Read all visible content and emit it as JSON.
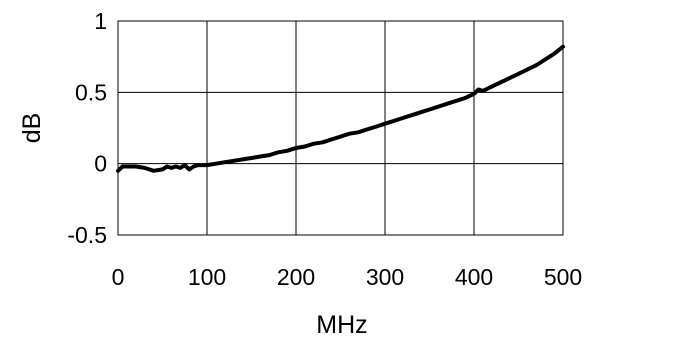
{
  "chart_data": {
    "type": "line",
    "title": "",
    "xlabel": "MHz",
    "ylabel": "dB",
    "xlim": [
      0,
      500
    ],
    "ylim": [
      -0.5,
      1
    ],
    "grid": true,
    "legend": "none",
    "x_ticks": [
      0,
      100,
      200,
      300,
      400,
      500
    ],
    "x_tick_labels": [
      "0",
      "100",
      "200",
      "300",
      "400",
      "500"
    ],
    "y_ticks": [
      -0.5,
      0,
      0.5,
      1
    ],
    "y_tick_labels": [
      "-0.5",
      "0",
      "0.5",
      "1"
    ],
    "line_color": "#000000",
    "series": [
      {
        "x": [
          0,
          5,
          10,
          20,
          30,
          40,
          50,
          55,
          60,
          65,
          70,
          75,
          80,
          85,
          90,
          100,
          110,
          120,
          130,
          140,
          150,
          160,
          170,
          180,
          190,
          200,
          210,
          220,
          230,
          240,
          250,
          260,
          270,
          280,
          290,
          300,
          310,
          320,
          330,
          340,
          350,
          360,
          370,
          380,
          390,
          400,
          405,
          410,
          420,
          430,
          440,
          450,
          460,
          470,
          480,
          490,
          500
        ],
        "y": [
          -0.05,
          -0.02,
          -0.02,
          -0.02,
          -0.03,
          -0.05,
          -0.04,
          -0.02,
          -0.03,
          -0.02,
          -0.03,
          -0.01,
          -0.04,
          -0.02,
          -0.01,
          -0.01,
          0.0,
          0.01,
          0.02,
          0.03,
          0.04,
          0.05,
          0.06,
          0.08,
          0.09,
          0.11,
          0.12,
          0.14,
          0.15,
          0.17,
          0.19,
          0.21,
          0.22,
          0.24,
          0.26,
          0.28,
          0.3,
          0.32,
          0.34,
          0.36,
          0.38,
          0.4,
          0.42,
          0.44,
          0.46,
          0.49,
          0.52,
          0.51,
          0.54,
          0.57,
          0.6,
          0.63,
          0.66,
          0.69,
          0.73,
          0.77,
          0.82
        ]
      }
    ]
  }
}
